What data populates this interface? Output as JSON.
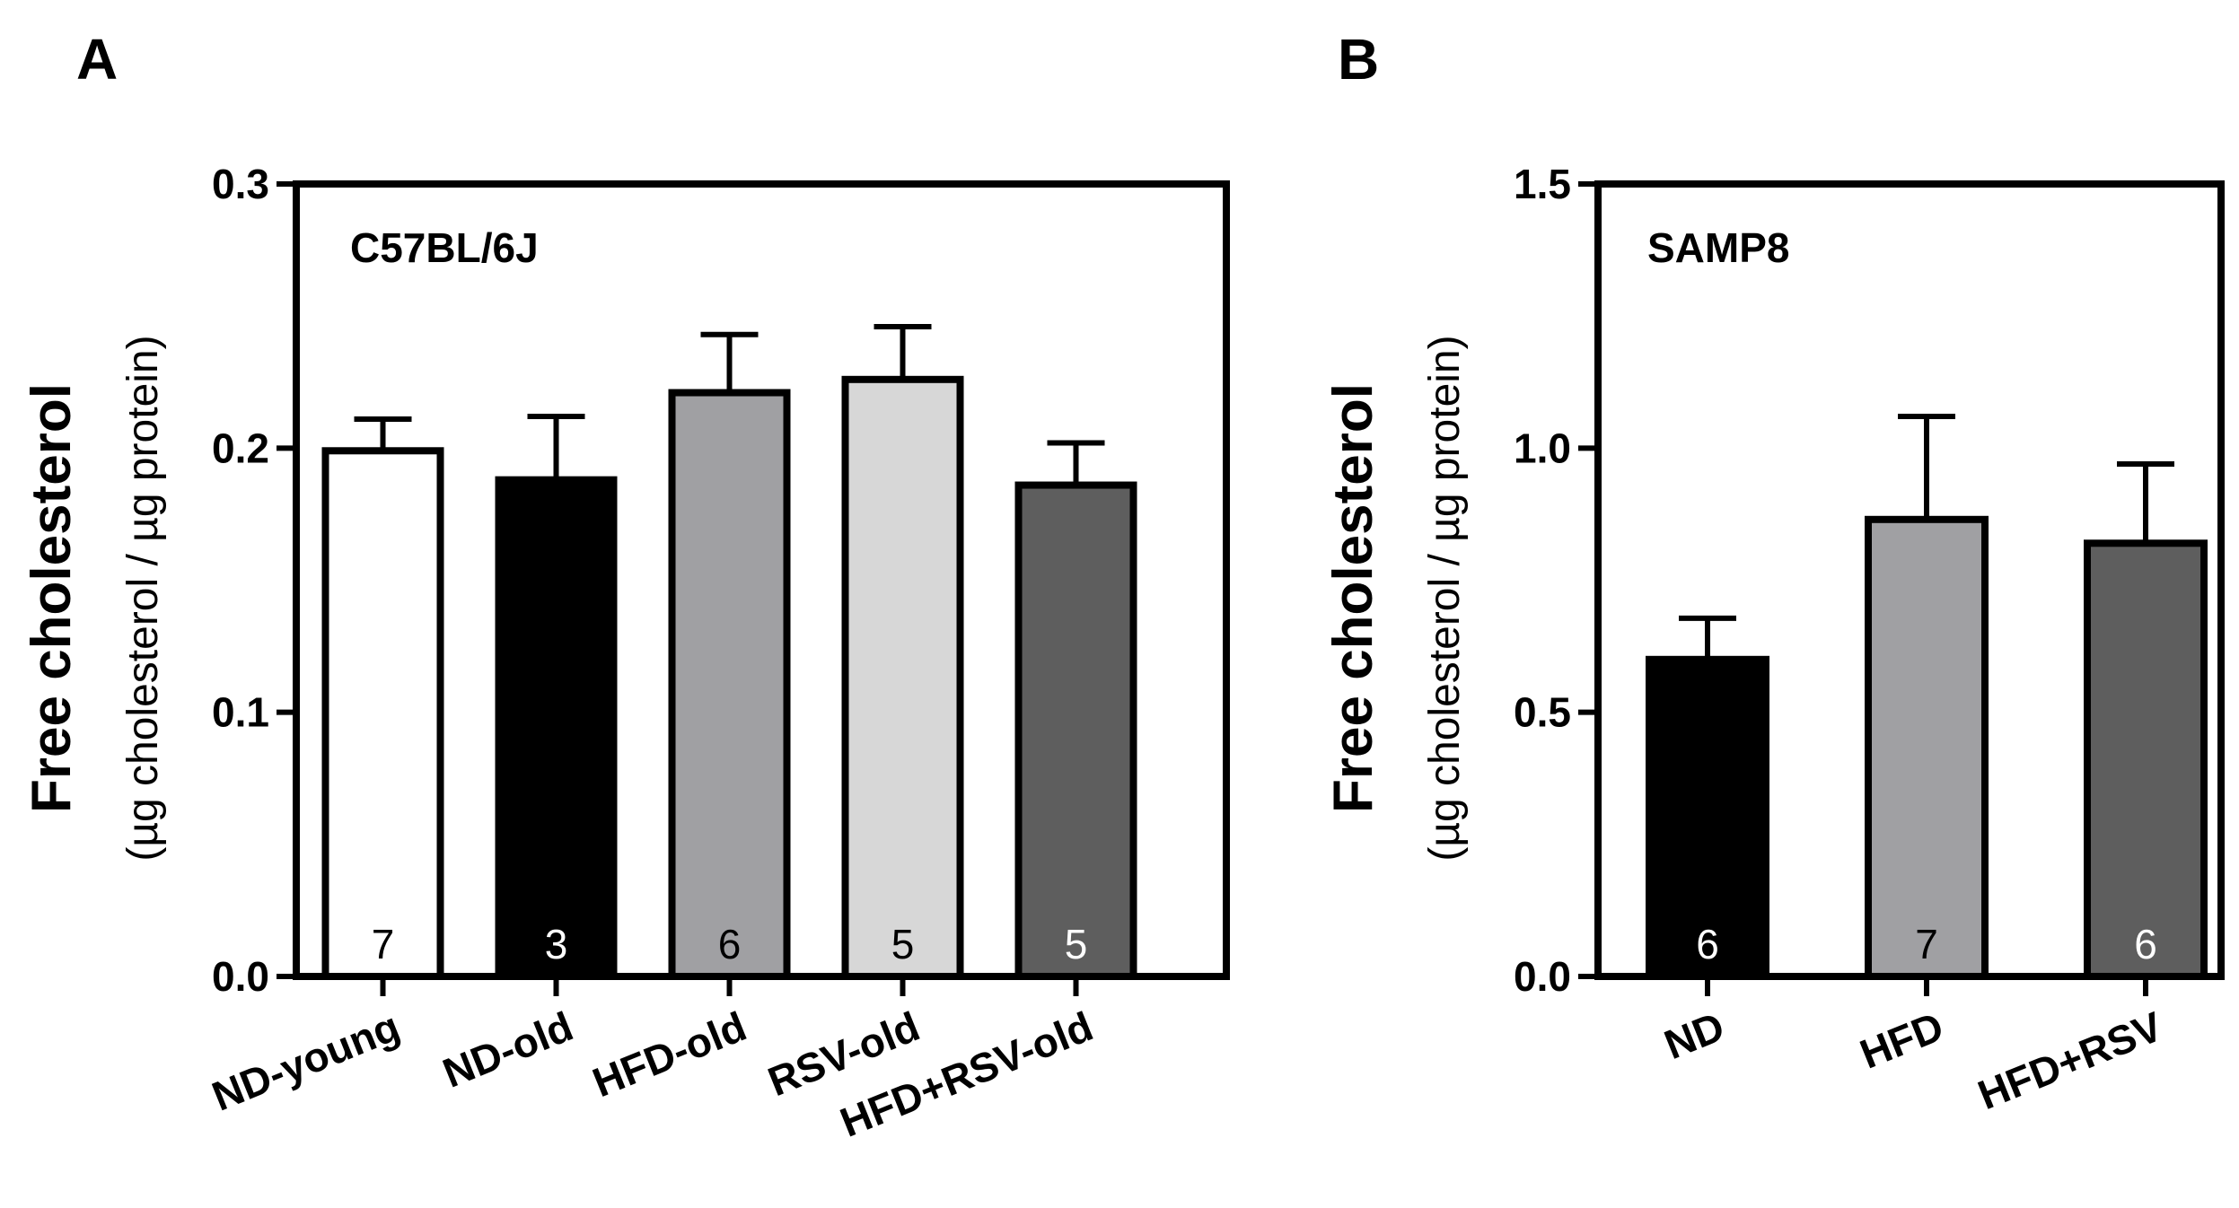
{
  "chart_data": [
    {
      "type": "bar",
      "panel_label": "A",
      "inset_label": "C57BL/6J",
      "ylabel_main": "Free cholesterol",
      "ylabel_sub": "(µg cholesterol / µg protein)",
      "ylim": [
        0,
        0.3
      ],
      "yticks": [
        0.0,
        0.1,
        0.2,
        0.3
      ],
      "ytick_labels": [
        "0.0",
        "0.1",
        "0.2",
        "0.3"
      ],
      "categories": [
        "ND-young",
        "ND-old",
        "HFD-old",
        "RSV-old",
        "HFD+RSV-old"
      ],
      "values": [
        0.199,
        0.188,
        0.221,
        0.226,
        0.186
      ],
      "errors": [
        0.012,
        0.024,
        0.022,
        0.02,
        0.016
      ],
      "n": [
        "7",
        "3",
        "6",
        "5",
        "5"
      ],
      "colors": [
        "#ffffff",
        "#000000",
        "#a0a0a3",
        "#d7d7d7",
        "#5e5e5e"
      ],
      "n_colors": [
        "#000000",
        "#ffffff",
        "#000000",
        "#000000",
        "#ffffff"
      ]
    },
    {
      "type": "bar",
      "panel_label": "B",
      "inset_label": "SAMP8",
      "ylabel_main": "Free cholesterol",
      "ylabel_sub": "(µg cholesterol / µg protein)",
      "ylim": [
        0,
        1.5
      ],
      "yticks": [
        0.0,
        0.5,
        1.0,
        1.5
      ],
      "ytick_labels": [
        "0.0",
        "0.5",
        "1.0",
        "1.5"
      ],
      "categories": [
        "ND",
        "HFD",
        "HFD+RSV"
      ],
      "values": [
        0.6,
        0.865,
        0.82
      ],
      "errors": [
        0.078,
        0.195,
        0.15
      ],
      "n": [
        "6",
        "7",
        "6"
      ],
      "colors": [
        "#000000",
        "#a0a0a3",
        "#5e5e5e"
      ],
      "n_colors": [
        "#ffffff",
        "#000000",
        "#ffffff"
      ]
    }
  ]
}
